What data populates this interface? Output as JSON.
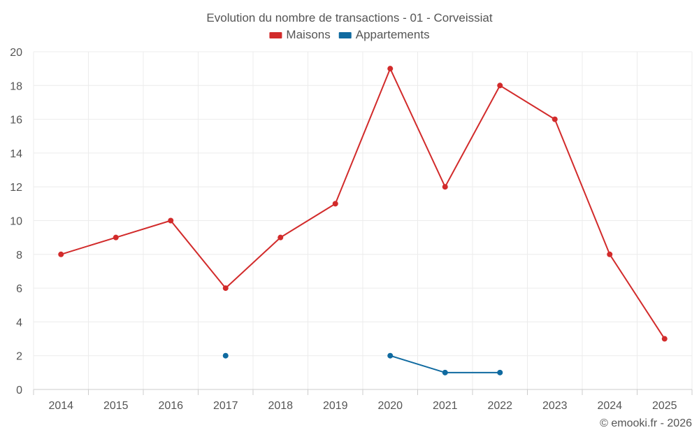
{
  "chart_data": {
    "type": "line",
    "title": "Evolution du nombre de transactions - 01 - Corveissiat",
    "categories": [
      "2014",
      "2015",
      "2016",
      "2017",
      "2018",
      "2019",
      "2020",
      "2021",
      "2022",
      "2023",
      "2024",
      "2025"
    ],
    "series": [
      {
        "name": "Maisons",
        "color": "#d22b2b",
        "values": [
          8,
          9,
          10,
          6,
          9,
          11,
          19,
          12,
          18,
          16,
          8,
          3
        ]
      },
      {
        "name": "Appartements",
        "color": "#0f6aa0",
        "values": [
          null,
          null,
          null,
          2,
          null,
          null,
          2,
          1,
          1,
          null,
          null,
          null
        ]
      }
    ],
    "ylim": [
      0,
      20
    ],
    "yticks": [
      0,
      2,
      4,
      6,
      8,
      10,
      12,
      14,
      16,
      18,
      20
    ],
    "ytick_labels": [
      "0",
      "2",
      "4",
      "6",
      "8",
      "10",
      "12",
      "14",
      "16",
      "18",
      "20"
    ],
    "grid": true,
    "legend": "top-center",
    "xlabel": "",
    "ylabel": ""
  },
  "credit": "© emooki.fr - 2026"
}
